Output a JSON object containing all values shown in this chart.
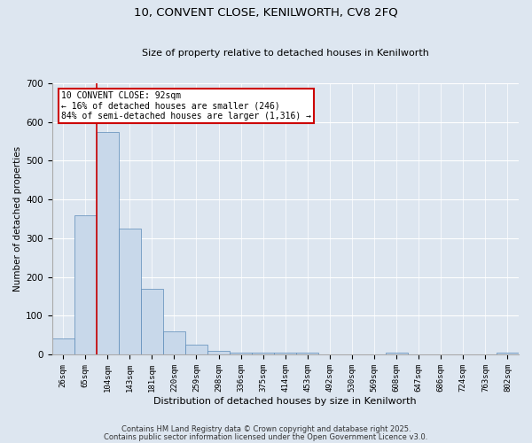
{
  "title1": "10, CONVENT CLOSE, KENILWORTH, CV8 2FQ",
  "title2": "Size of property relative to detached houses in Kenilworth",
  "xlabel": "Distribution of detached houses by size in Kenilworth",
  "ylabel": "Number of detached properties",
  "bar_color": "#c8d8ea",
  "bar_edge_color": "#5a8ab8",
  "annotation_line_color": "#cc0000",
  "categories": [
    "26sqm",
    "65sqm",
    "104sqm",
    "143sqm",
    "181sqm",
    "220sqm",
    "259sqm",
    "298sqm",
    "336sqm",
    "375sqm",
    "414sqm",
    "453sqm",
    "492sqm",
    "530sqm",
    "569sqm",
    "608sqm",
    "647sqm",
    "686sqm",
    "724sqm",
    "763sqm",
    "802sqm"
  ],
  "values": [
    40,
    360,
    575,
    325,
    170,
    60,
    25,
    10,
    5,
    5,
    5,
    5,
    0,
    0,
    0,
    5,
    0,
    0,
    0,
    0,
    5
  ],
  "ylim": [
    0,
    700
  ],
  "yticks": [
    0,
    100,
    200,
    300,
    400,
    500,
    600,
    700
  ],
  "annotation_text": "10 CONVENT CLOSE: 92sqm\n← 16% of detached houses are smaller (246)\n84% of semi-detached houses are larger (1,316) →",
  "annotation_box_color": "#ffffff",
  "annotation_box_edge": "#cc0000",
  "footer1": "Contains HM Land Registry data © Crown copyright and database right 2025.",
  "footer2": "Contains public sector information licensed under the Open Government Licence v3.0.",
  "background_color": "#dde6f0",
  "grid_color": "#ffffff"
}
